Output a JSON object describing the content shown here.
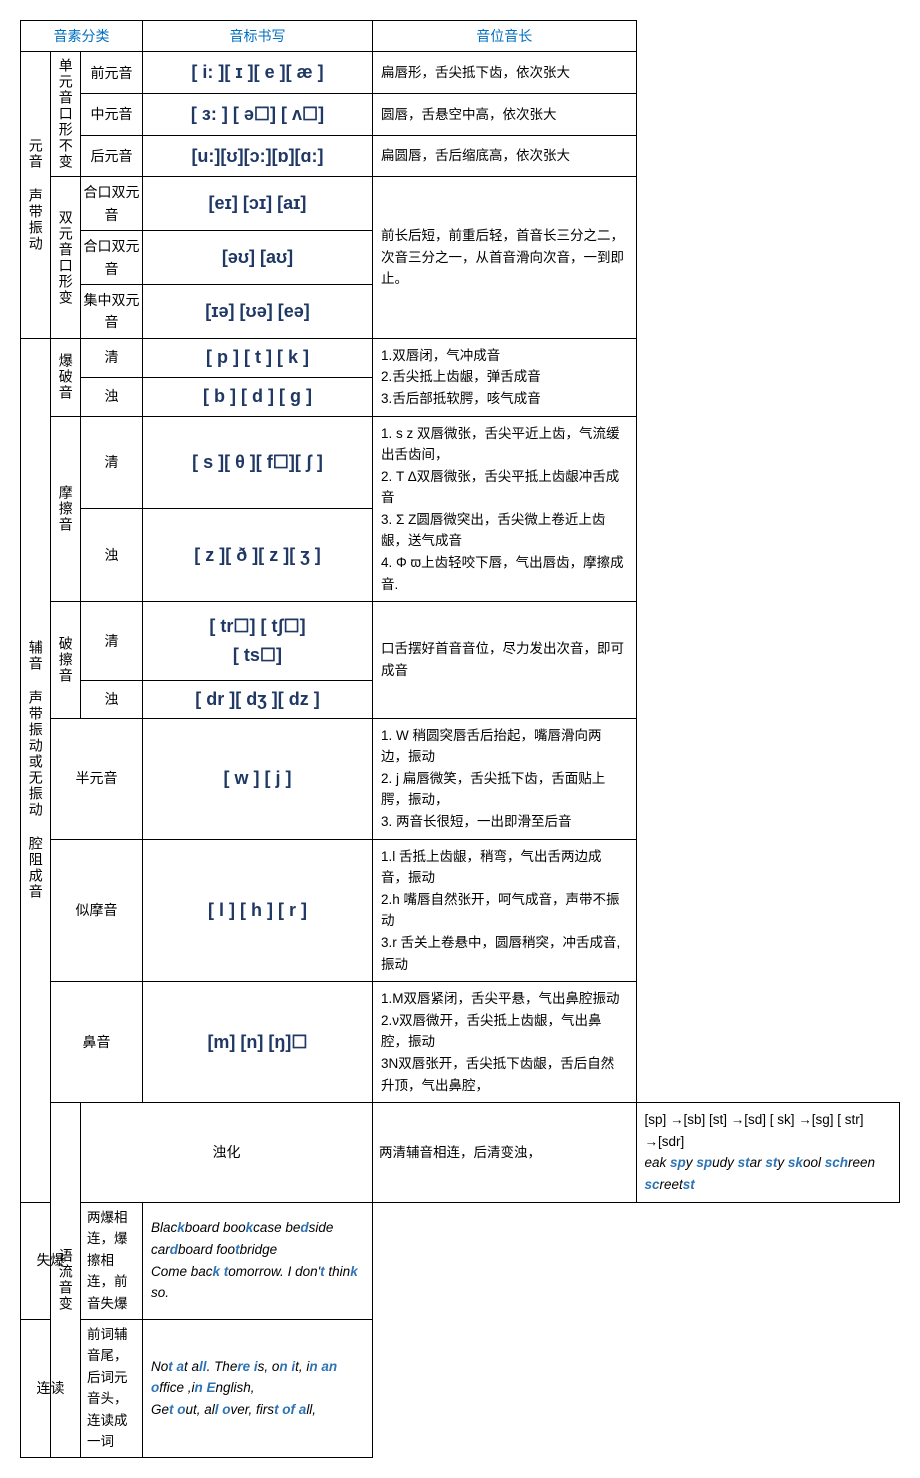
{
  "headers": {
    "col1": "音素分类",
    "col2": "音标书写",
    "col3": "音位音长"
  },
  "vowels": {
    "groupLabel": "元音  声带振动",
    "mono": {
      "label": "单元音口形不变",
      "rows": [
        {
          "cat": "前元音",
          "ipa": "[ i: ][ ɪ ][ e ][ æ ]",
          "desc": "扁唇形，舌尖抵下齿，依次张大"
        },
        {
          "cat": "中元音",
          "ipa": "[ ɜ: ] [ ə☐] [ ʌ☐]",
          "desc": "圆唇，舌悬空中高，依次张大",
          "dashed": true
        },
        {
          "cat": "后元音",
          "ipa": "[u:][ʊ][ɔ:][ɒ][ɑ:]",
          "desc": "扁圆唇，舌后缩底高，依次张大"
        }
      ]
    },
    "diph": {
      "label": "双元音口形变",
      "rows": [
        {
          "cat": "合口双元音",
          "ipa": "[eɪ] [ɔɪ] [aɪ]",
          "desc": "前长后短，前重后轻，首音长三分之二，次音三分之一，从首音滑向次音，一到即止。"
        },
        {
          "cat": "合口双元音",
          "ipa": "[əʊ] [aʊ]"
        },
        {
          "cat": "集中双元音",
          "ipa": "[ɪə] [ʊə] [eə]"
        }
      ]
    }
  },
  "consonants": {
    "groupLabel": "辅音  声带振动或无振动  腔阻成音",
    "plosive": {
      "label": "爆破音",
      "voiceless": {
        "cat": "清",
        "ipa": "[ p ] [ t ] [ k ]"
      },
      "voiced": {
        "cat": "浊",
        "ipa": "[ b ] [ d ] [ g ]"
      },
      "desc": "1.双唇闭，气冲成音\n2.舌尖抵上齿龈，弹舌成音\n3.舌后部抵软腭，咳气成音"
    },
    "fricative": {
      "label": "摩擦音",
      "voiceless": {
        "cat": "清",
        "ipa": "[ s ][ θ ][ f☐][ ʃ ]"
      },
      "voiced": {
        "cat": "浊",
        "ipa": "[ z ][ ð ][ z ][ ʒ ]"
      },
      "desc": "1. s z 双唇微张，舌尖平近上齿，气流缓出舌齿间，\n2. T Δ双唇微张，舌尖平抵上齿龈冲舌成音\n3. Σ Z圆唇微突出，舌尖微上卷近上齿龈，送气成音\n4. Φ ϖ上齿轻咬下唇，气出唇齿，摩擦成音."
    },
    "affricate": {
      "label": "破擦音",
      "voiceless": {
        "cat": "清",
        "ipa": "[ tr☐] [ tʃ☐]\n[ ts☐]"
      },
      "voiced": {
        "cat": "浊",
        "ipa": "[ dr ][ dʒ ][ dz ]"
      },
      "desc": "口舌摆好首音音位，尽力发出次音，即可成音"
    },
    "semivowel": {
      "label": "半元音",
      "ipa": "[ w ] [ j ]",
      "desc": "1. W 稍圆突唇舌后抬起，嘴唇滑向两边，振动\n2. j 扁唇微笑，舌尖抵下齿，舌面贴上腭，振动，\n3. 两音长很短，一出即滑至后音"
    },
    "approximant": {
      "label": "似摩音",
      "ipa": "[ l ] [ h ] [ r ]",
      "desc": "1.l 舌抵上齿龈，稍弯，气出舌两边成音，振动\n2.h 嘴唇自然张开，呵气成音，声带不振动\n    3.r 舌关上卷悬中，圆唇稍突，冲舌成音,振动"
    },
    "nasal": {
      "label": "鼻音",
      "ipa": "[m] [n] [ŋ]☐",
      "desc": "1.M双唇紧闭，舌尖平悬，气出鼻腔振动\n2.ν双唇微开，舌尖抵上齿龈，气出鼻腔，振动\n3N双唇张开，舌尖抵下齿龈，舌后自然升顶，气出鼻腔，"
    }
  },
  "flow": {
    "groupLabel": "语流音变",
    "rows": [
      {
        "label": "浊化",
        "rule": "两清辅音相连，后清变浊，",
        "examplesLine1": "[sp] →[sb]   [st] →[sd]   [ sk] →[sg]   [ str] →[sdr]",
        "examplesLine2Parts": [
          {
            "b": "sp",
            "r": "eak "
          },
          {
            "b": "sp",
            "r": "y "
          },
          {
            "b": "st",
            "r": "udy "
          },
          {
            "b": "st",
            "r": "ar "
          },
          {
            "b": "sk",
            "r": "y "
          },
          {
            "b": "sch",
            "r": "ool "
          },
          {
            "b": "sc",
            "r": "reen "
          },
          {
            "b": "st",
            "r": "reet"
          }
        ]
      },
      {
        "label": "失爆",
        "rule": "两爆相连，爆擦相连，前音失爆",
        "examplesParts": [
          {
            "r": "Blac",
            "b": "k",
            "r2": "board boo"
          },
          {
            "b": "k",
            "r2": "case be"
          },
          {
            "b": "d",
            "r2": "side car"
          },
          {
            "b": "d",
            "r2": "board foo"
          },
          {
            "b": "t",
            "r2": "bridge"
          }
        ],
        "examplesLine2Parts": [
          {
            "r": "Come bac",
            "b": "k t",
            "r2": "omorrow.    I don'"
          },
          {
            "b": "t",
            "r2": " thin"
          },
          {
            "b": "k",
            "r2": " so."
          }
        ]
      },
      {
        "label": "连读",
        "rule": "前词辅音尾，后词元音头，连读成一词",
        "examplesParts": [
          {
            "r": "No",
            "b": "t a",
            "r2": "t a"
          },
          {
            "b": "ll",
            "r2": ". The"
          },
          {
            "b": "re i",
            "r2": "s, o"
          },
          {
            "b": "n i",
            "r2": "t, i"
          },
          {
            "b": "n an o",
            "r2": "ffice ,i"
          },
          {
            "b": "n E",
            "r2": "nglish,"
          }
        ],
        "examplesLine2Parts": [
          {
            "r": "Ge",
            "b": "t o",
            "r2": "ut, al"
          },
          {
            "b": "l o",
            "r2": "ver, firs"
          },
          {
            "b": "t of a",
            "r2": "ll,"
          }
        ]
      }
    ]
  },
  "colors": {
    "headerText": "#0070c0",
    "ipaText": "#1f3864",
    "border": "#000000",
    "highlight": "#2e74b5"
  }
}
